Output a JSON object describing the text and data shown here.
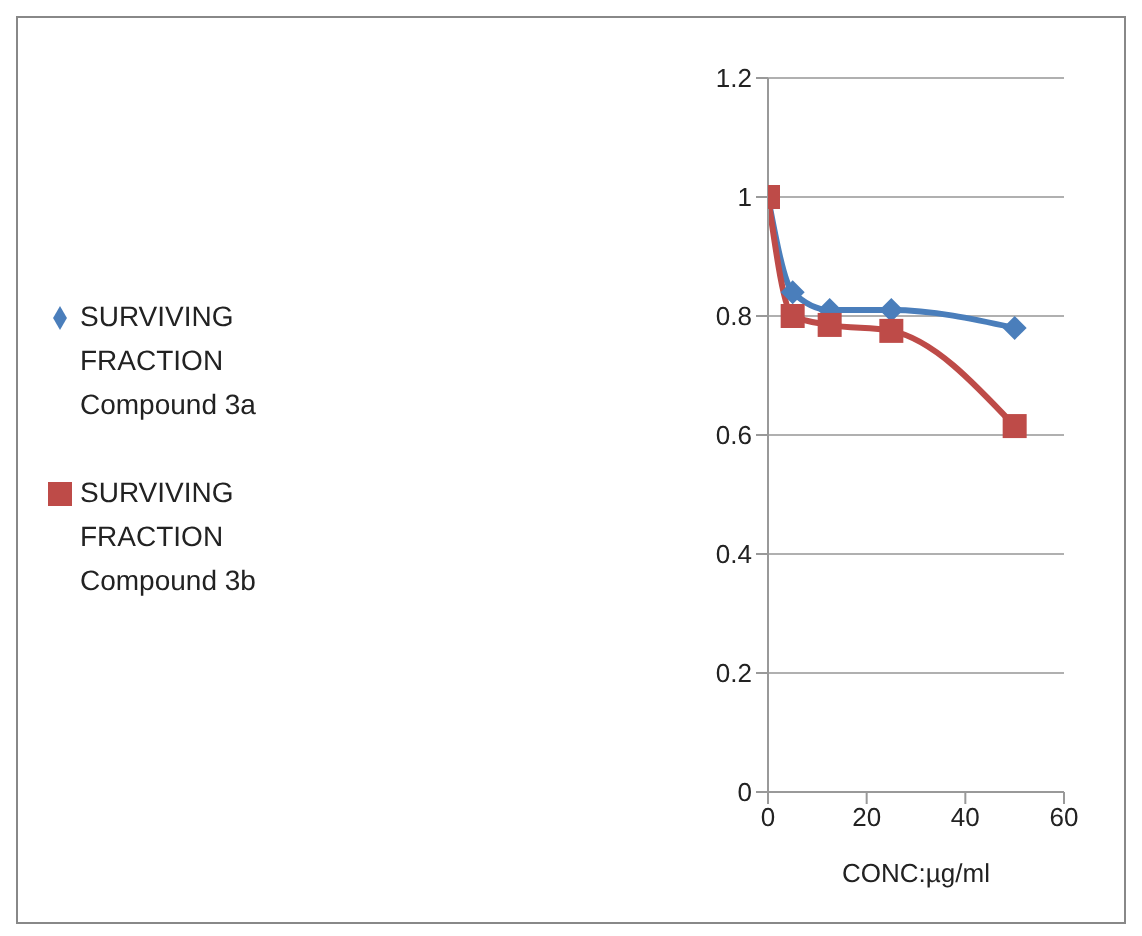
{
  "chart_data": {
    "type": "line",
    "xlabel": "CONC:µg/ml",
    "x": [
      0,
      5,
      12.5,
      25,
      50
    ],
    "series": [
      {
        "name": "SURVIVING FRACTION Compound 3a",
        "color": "#4a7ebb",
        "values": [
          1,
          0.84,
          0.81,
          0.81,
          0.78
        ],
        "marker": "diamond"
      },
      {
        "name": "SURVIVING FRACTION Compound 3b",
        "color": "#be4b48",
        "values": [
          1,
          0.8,
          0.785,
          0.775,
          0.615
        ],
        "marker": "square"
      }
    ],
    "xlim": [
      0,
      60
    ],
    "xticks": [
      0,
      20,
      40,
      60
    ],
    "ylim": [
      0,
      1.2
    ],
    "yticks": [
      0,
      0.2,
      0.4,
      0.6,
      0.8,
      1,
      1.2
    ],
    "grid": "y",
    "legend": "left",
    "line_style": "solid"
  }
}
